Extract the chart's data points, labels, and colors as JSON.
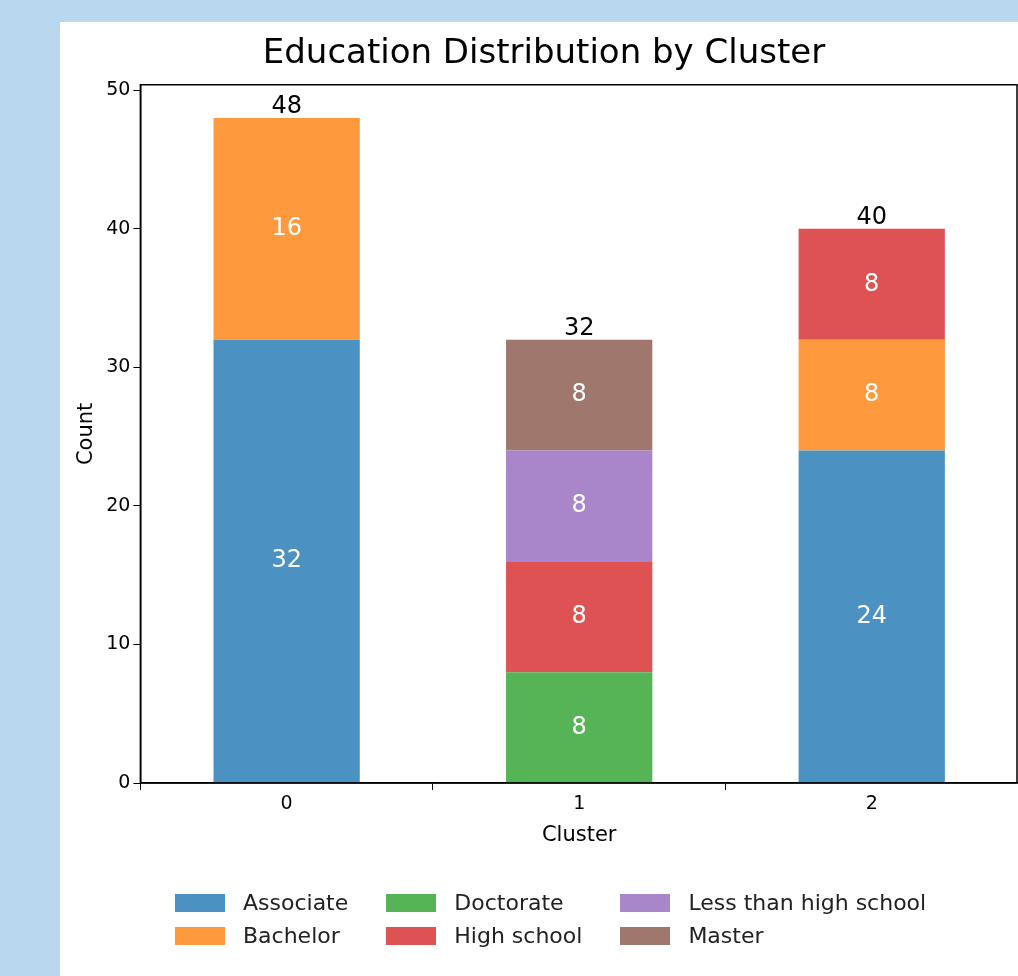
{
  "chart_data": {
    "type": "bar",
    "title": "Education Distribution by Cluster",
    "xlabel": "Cluster",
    "ylabel": "Count",
    "categories": [
      "0",
      "1",
      "2"
    ],
    "stacked": true,
    "series": [
      {
        "name": "Associate",
        "color": "#4b92c3",
        "values": [
          32,
          null,
          24
        ]
      },
      {
        "name": "Bachelor",
        "color": "#ff993e",
        "values": [
          16,
          null,
          8
        ]
      },
      {
        "name": "Doctorate",
        "color": "#56b356",
        "values": [
          null,
          8,
          null
        ]
      },
      {
        "name": "High school",
        "color": "#de5253",
        "values": [
          null,
          8,
          8
        ]
      },
      {
        "name": "Less than high school",
        "color": "#a886c9",
        "values": [
          null,
          8,
          null
        ]
      },
      {
        "name": "Master",
        "color": "#a0776c",
        "values": [
          null,
          8,
          null
        ]
      }
    ],
    "totals": [
      "48",
      "32",
      "40"
    ],
    "data_labels": true,
    "ylim": [
      0,
      50.4
    ],
    "yticks": [
      0,
      10,
      20,
      30,
      40,
      50
    ],
    "grid": false,
    "legend": "bottom"
  }
}
